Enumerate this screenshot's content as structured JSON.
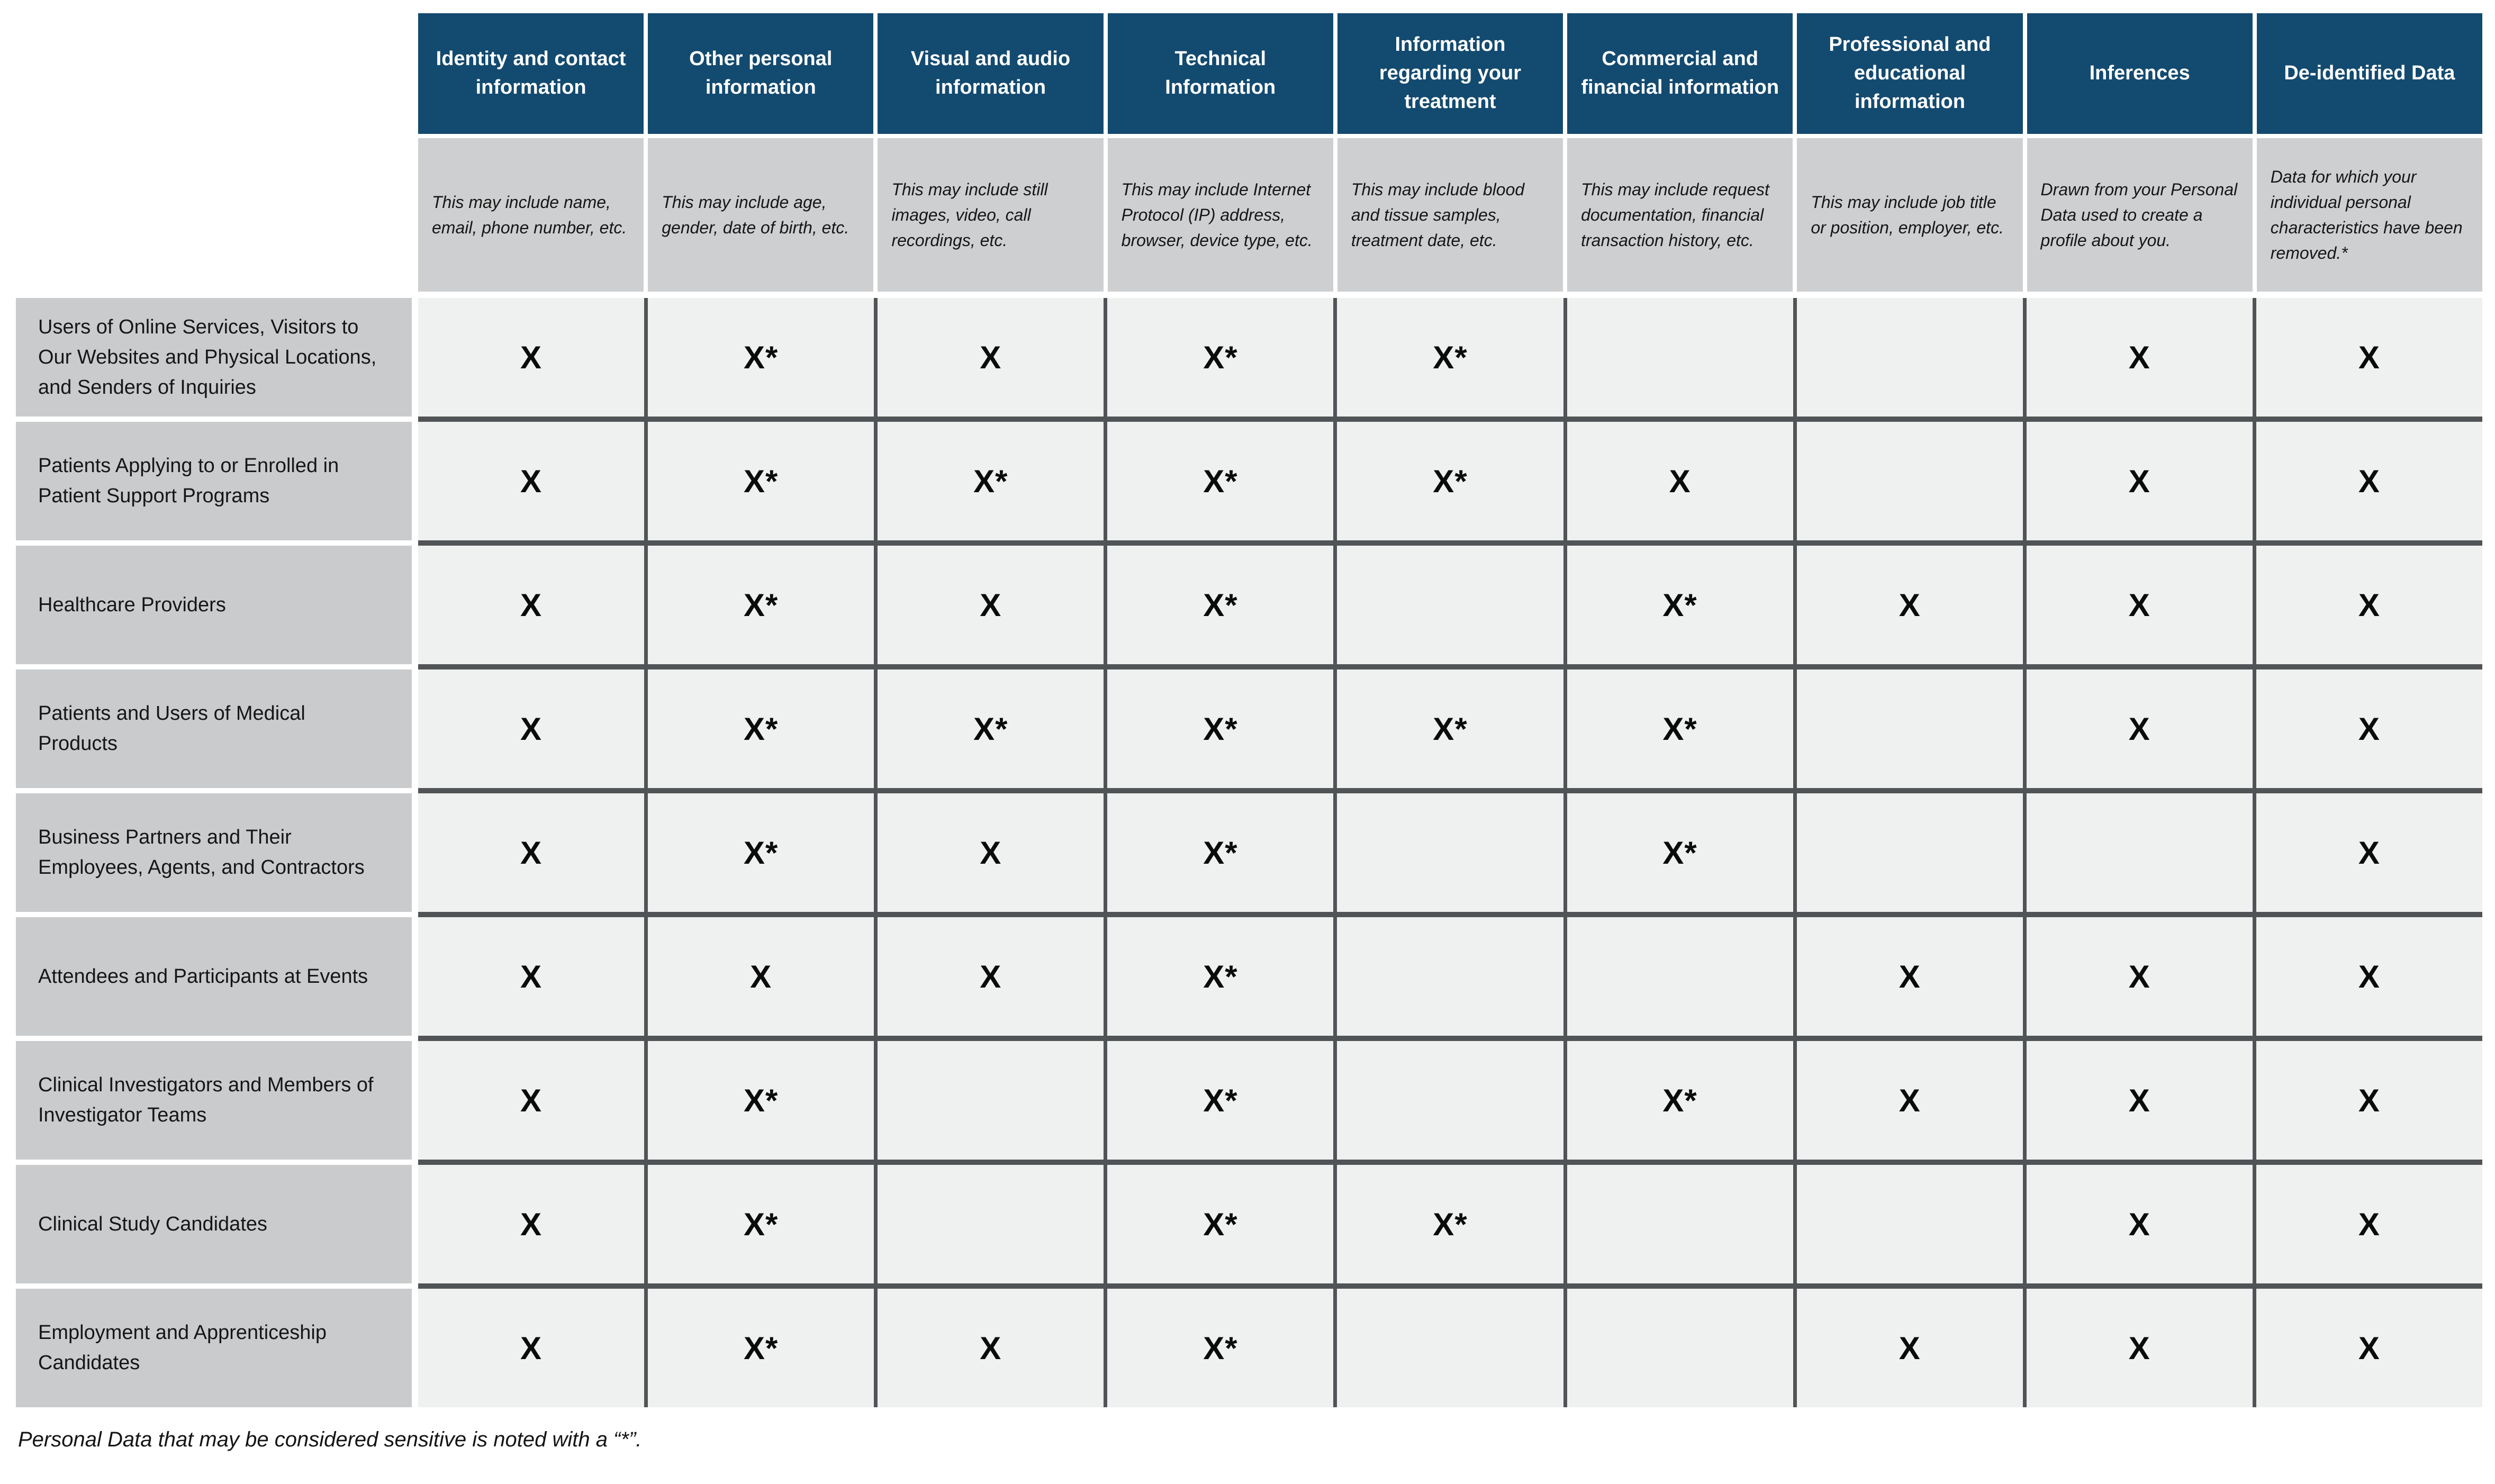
{
  "table": {
    "columns": [
      {
        "header": "Identity and contact information",
        "description": "This may include name, email, phone number, etc."
      },
      {
        "header": "Other personal information",
        "description": "This may include age, gender, date of birth, etc."
      },
      {
        "header": "Visual and audio information",
        "description": "This may include still images, video, call recordings, etc."
      },
      {
        "header": "Technical Information",
        "description": "This may include Internet Protocol (IP) address, browser, device type, etc."
      },
      {
        "header": "Information regarding your treatment",
        "description": "This may include blood and tissue samples, treatment date, etc."
      },
      {
        "header": "Commercial and financial information",
        "description": "This may include request documentation, financial transaction history, etc."
      },
      {
        "header": "Professional and educational information",
        "description": "This may include job title or position, employer, etc."
      },
      {
        "header": "Inferences",
        "description": "Drawn from your Personal Data used to create a profile about you."
      },
      {
        "header": "De-identified Data",
        "description": "Data for which your individual personal characteristics have been removed.*"
      }
    ],
    "rows": [
      {
        "label": "Users of Online Services, Visitors to Our Websites and Physical Locations, and Senders of Inquiries",
        "cells": [
          "X",
          "X*",
          "X",
          "X*",
          "X*",
          "",
          "",
          "X",
          "X"
        ]
      },
      {
        "label": "Patients Applying to or Enrolled in Patient Support Programs",
        "cells": [
          "X",
          "X*",
          "X*",
          "X*",
          "X*",
          "X",
          "",
          "X",
          "X"
        ]
      },
      {
        "label": "Healthcare Providers",
        "cells": [
          "X",
          "X*",
          "X",
          "X*",
          "",
          "X*",
          "X",
          "X",
          "X"
        ]
      },
      {
        "label": "Patients and Users of Medical Products",
        "cells": [
          "X",
          "X*",
          "X*",
          "X*",
          "X*",
          "X*",
          "",
          "X",
          "X"
        ]
      },
      {
        "label": "Business Partners and Their Employees, Agents, and Contractors",
        "cells": [
          "X",
          "X*",
          "X",
          "X*",
          "",
          "X*",
          "",
          "",
          "X"
        ]
      },
      {
        "label": "Attendees and Participants at Events",
        "cells": [
          "X",
          "X",
          "X",
          "X*",
          "",
          "",
          "X",
          "X",
          "X"
        ]
      },
      {
        "label": "Clinical Investigators and Members of Investigator Teams",
        "cells": [
          "X",
          "X*",
          "",
          "X*",
          "",
          "X*",
          "X",
          "X",
          "X"
        ]
      },
      {
        "label": "Clinical Study Candidates",
        "cells": [
          "X",
          "X*",
          "",
          "X*",
          "X*",
          "",
          "",
          "X",
          "X"
        ]
      },
      {
        "label": "Employment and Apprenticeship Candidates",
        "cells": [
          "X",
          "X*",
          "X",
          "X*",
          "",
          "",
          "X",
          "X",
          "X"
        ]
      }
    ],
    "footnote": "Personal Data that may be considered sensitive is noted with a “*”."
  },
  "colors": {
    "header_blue": "#134A70",
    "header_text": "#FFFFFF",
    "description_grey": "#CDCFD0",
    "label_grey": "#C9CBCD",
    "data_cell_grey": "#EFF0F0",
    "divider_dark": "#515456",
    "text_dark": "#161616"
  }
}
